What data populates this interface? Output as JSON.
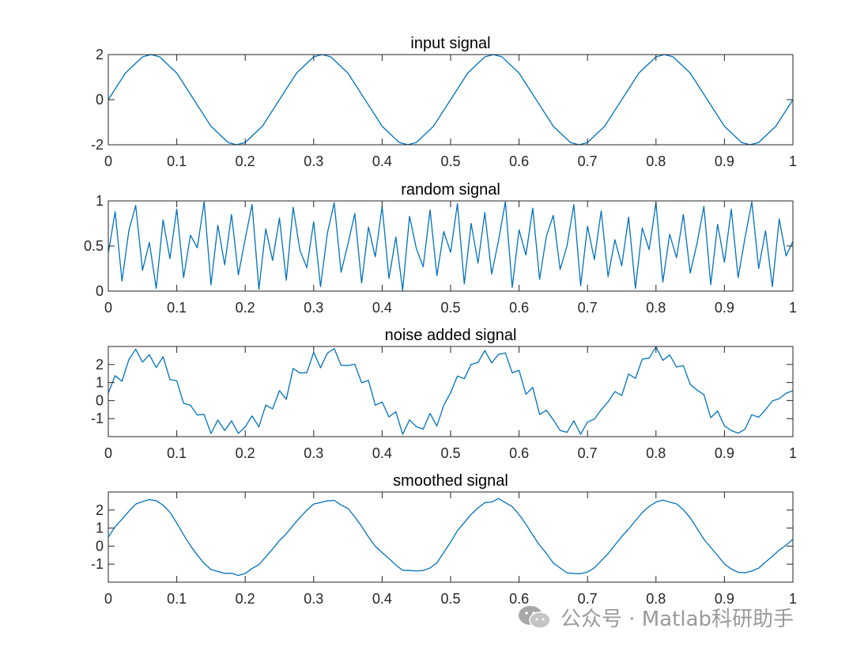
{
  "colors": {
    "line": "#0072BD",
    "axes": "#262626",
    "background": "#ffffff",
    "watermark": "#9a9a9a"
  },
  "watermark": {
    "icon": "wechat-icon",
    "text": "公众号 · Matlab科研助手"
  },
  "chart_data": [
    {
      "type": "line",
      "title": "input signal",
      "xlabel": "",
      "ylabel": "",
      "xlim": [
        0,
        1
      ],
      "ylim": [
        -2,
        2
      ],
      "xticks": [
        0,
        0.1,
        0.2,
        0.3,
        0.4,
        0.5,
        0.6,
        0.7,
        0.8,
        0.9,
        1
      ],
      "xtick_labels": [
        "0",
        "0.1",
        "0.2",
        "0.3",
        "0.4",
        "0.5",
        "0.6",
        "0.7",
        "0.8",
        "0.9",
        "1"
      ],
      "yticks": [
        -2,
        0,
        2
      ],
      "ytick_labels": [
        "-2",
        "0",
        "2"
      ],
      "grid": false,
      "series": [
        {
          "x": [
            0,
            0.025,
            0.05,
            0.0625,
            0.075,
            0.1,
            0.125,
            0.15,
            0.175,
            0.1875,
            0.2,
            0.225,
            0.25,
            0.275,
            0.3,
            0.3125,
            0.325,
            0.35,
            0.375,
            0.4,
            0.425,
            0.4375,
            0.45,
            0.475,
            0.5,
            0.525,
            0.55,
            0.5625,
            0.575,
            0.6,
            0.625,
            0.65,
            0.675,
            0.6875,
            0.7,
            0.725,
            0.75,
            0.775,
            0.8,
            0.8125,
            0.825,
            0.85,
            0.875,
            0.9,
            0.925,
            0.9375,
            0.95,
            0.975,
            1
          ],
          "y": [
            0,
            1.18,
            1.9,
            2,
            1.9,
            1.18,
            0,
            -1.18,
            -1.9,
            -2,
            -1.9,
            -1.18,
            0,
            1.18,
            1.9,
            2,
            1.9,
            1.18,
            0,
            -1.18,
            -1.9,
            -2,
            -1.9,
            -1.18,
            0,
            1.18,
            1.9,
            2,
            1.9,
            1.18,
            0,
            -1.18,
            -1.9,
            -2,
            -1.9,
            -1.18,
            0,
            1.18,
            1.9,
            2,
            1.9,
            1.18,
            0,
            -1.18,
            -1.9,
            -2,
            -1.9,
            -1.18,
            0
          ]
        }
      ]
    },
    {
      "type": "line",
      "title": "random signal",
      "xlabel": "",
      "ylabel": "",
      "xlim": [
        0,
        1
      ],
      "ylim": [
        0,
        1
      ],
      "xticks": [
        0,
        0.1,
        0.2,
        0.3,
        0.4,
        0.5,
        0.6,
        0.7,
        0.8,
        0.9,
        1
      ],
      "xtick_labels": [
        "0",
        "0.1",
        "0.2",
        "0.3",
        "0.4",
        "0.5",
        "0.6",
        "0.7",
        "0.8",
        "0.9",
        "1"
      ],
      "yticks": [
        0,
        0.5,
        1
      ],
      "ytick_labels": [
        "0",
        "0.5",
        "1"
      ],
      "grid": false,
      "series": [
        {
          "x": [
            0,
            0.01,
            0.02,
            0.03,
            0.04,
            0.05,
            0.06,
            0.07,
            0.08,
            0.09,
            0.1,
            0.11,
            0.12,
            0.13,
            0.14,
            0.15,
            0.16,
            0.17,
            0.18,
            0.19,
            0.2,
            0.21,
            0.22,
            0.23,
            0.24,
            0.25,
            0.26,
            0.27,
            0.28,
            0.29,
            0.3,
            0.31,
            0.32,
            0.33,
            0.34,
            0.35,
            0.36,
            0.37,
            0.38,
            0.39,
            0.4,
            0.41,
            0.42,
            0.43,
            0.44,
            0.45,
            0.46,
            0.47,
            0.48,
            0.49,
            0.5,
            0.51,
            0.52,
            0.53,
            0.54,
            0.55,
            0.56,
            0.57,
            0.58,
            0.59,
            0.6,
            0.61,
            0.62,
            0.63,
            0.64,
            0.65,
            0.66,
            0.67,
            0.68,
            0.69,
            0.7,
            0.71,
            0.72,
            0.73,
            0.74,
            0.75,
            0.76,
            0.77,
            0.78,
            0.79,
            0.8,
            0.81,
            0.82,
            0.83,
            0.84,
            0.85,
            0.86,
            0.87,
            0.88,
            0.89,
            0.9,
            0.91,
            0.92,
            0.93,
            0.94,
            0.95,
            0.96,
            0.97,
            0.98,
            0.99,
            1
          ],
          "y": [
            0.42,
            0.88,
            0.11,
            0.67,
            0.95,
            0.23,
            0.54,
            0.03,
            0.79,
            0.36,
            0.91,
            0.15,
            0.62,
            0.48,
            0.99,
            0.07,
            0.73,
            0.29,
            0.85,
            0.18,
            0.58,
            0.96,
            0.02,
            0.69,
            0.34,
            0.81,
            0.12,
            0.93,
            0.45,
            0.26,
            0.77,
            0.05,
            0.64,
            0.98,
            0.21,
            0.52,
            0.86,
            0.09,
            0.71,
            0.38,
            0.94,
            0.14,
            0.6,
            0.01,
            0.83,
            0.47,
            0.27,
            0.9,
            0.17,
            0.66,
            0.43,
            0.97,
            0.08,
            0.75,
            0.31,
            0.87,
            0.19,
            0.56,
            0.99,
            0.04,
            0.68,
            0.4,
            0.92,
            0.13,
            0.61,
            0.84,
            0.24,
            0.5,
            0.96,
            0.06,
            0.72,
            0.35,
            0.89,
            0.16,
            0.57,
            0.28,
            0.82,
            0.03,
            0.7,
            0.46,
            0.98,
            0.1,
            0.63,
            0.37,
            0.85,
            0.2,
            0.53,
            0.94,
            0.07,
            0.74,
            0.32,
            0.91,
            0.15,
            0.59,
            0.99,
            0.25,
            0.67,
            0.05,
            0.8,
            0.39,
            0.55
          ]
        }
      ]
    },
    {
      "type": "line",
      "title": "noise added signal",
      "xlabel": "",
      "ylabel": "",
      "xlim": [
        0,
        1
      ],
      "ylim": [
        -2,
        3
      ],
      "xticks": [
        0,
        0.1,
        0.2,
        0.3,
        0.4,
        0.5,
        0.6,
        0.7,
        0.8,
        0.9,
        1
      ],
      "xtick_labels": [
        "0",
        "0.1",
        "0.2",
        "0.3",
        "0.4",
        "0.5",
        "0.6",
        "0.7",
        "0.8",
        "0.9",
        "1"
      ],
      "yticks": [
        -1,
        0,
        1,
        2
      ],
      "ytick_labels": [
        "-1",
        "0",
        "1",
        "2"
      ],
      "grid": false,
      "series": [
        {
          "x": [
            0,
            0.01,
            0.02,
            0.03,
            0.04,
            0.05,
            0.06,
            0.07,
            0.08,
            0.09,
            0.1,
            0.11,
            0.12,
            0.13,
            0.14,
            0.15,
            0.16,
            0.17,
            0.18,
            0.19,
            0.2,
            0.21,
            0.22,
            0.23,
            0.24,
            0.25,
            0.26,
            0.27,
            0.28,
            0.29,
            0.3,
            0.31,
            0.32,
            0.33,
            0.34,
            0.35,
            0.36,
            0.37,
            0.38,
            0.39,
            0.4,
            0.41,
            0.42,
            0.43,
            0.44,
            0.45,
            0.46,
            0.47,
            0.48,
            0.49,
            0.5,
            0.51,
            0.52,
            0.53,
            0.54,
            0.55,
            0.56,
            0.57,
            0.58,
            0.59,
            0.6,
            0.61,
            0.62,
            0.63,
            0.64,
            0.65,
            0.66,
            0.67,
            0.68,
            0.69,
            0.7,
            0.71,
            0.72,
            0.73,
            0.74,
            0.75,
            0.76,
            0.77,
            0.78,
            0.79,
            0.8,
            0.81,
            0.82,
            0.83,
            0.84,
            0.85,
            0.86,
            0.87,
            0.88,
            0.89,
            0.9,
            0.91,
            0.92,
            0.93,
            0.94,
            0.95,
            0.96,
            0.97,
            0.98,
            0.99,
            1
          ],
          "y": [
            0.42,
            1.38,
            1.07,
            2.27,
            2.85,
            2.13,
            2.54,
            1.83,
            2.43,
            1.17,
            1.09,
            -0.15,
            -0.26,
            -0.8,
            -0.77,
            -1.83,
            -1.08,
            -1.66,
            -1.12,
            -1.82,
            -1.46,
            -0.85,
            -1.46,
            -0.25,
            -0.46,
            0.55,
            0.07,
            1.78,
            1.53,
            1.55,
            2.67,
            1.82,
            2.63,
            2.88,
            1.96,
            1.94,
            2.02,
            0.99,
            1.12,
            -0.26,
            -0.08,
            -0.91,
            -0.62,
            -1.87,
            -1.07,
            -1.45,
            -1.58,
            -0.71,
            -1.41,
            -0.26,
            0.43,
            1.36,
            1.21,
            2.01,
            2.11,
            2.77,
            2.09,
            2.56,
            2.64,
            1.54,
            1.68,
            0.35,
            0.73,
            -0.77,
            -0.54,
            -1.06,
            -1.66,
            -1.76,
            -1.12,
            -1.87,
            -1.18,
            -1.03,
            -0.51,
            -0.07,
            0.5,
            0.28,
            1.47,
            1.23,
            2.3,
            2.35,
            2.98,
            2.23,
            2.53,
            1.86,
            1.94,
            0.9,
            0.58,
            0.33,
            -0.95,
            -0.58,
            -1.4,
            -1.66,
            -1.81,
            -1.59,
            -0.78,
            -0.93,
            -0.51,
            -0.02,
            0.11,
            0.4,
            0.55
          ]
        }
      ]
    },
    {
      "type": "line",
      "title": "smoothed signal",
      "xlabel": "",
      "ylabel": "",
      "xlim": [
        0,
        1
      ],
      "ylim": [
        -2,
        3
      ],
      "xticks": [
        0,
        0.1,
        0.2,
        0.3,
        0.4,
        0.5,
        0.6,
        0.7,
        0.8,
        0.9,
        1
      ],
      "xtick_labels": [
        "0",
        "0.1",
        "0.2",
        "0.3",
        "0.4",
        "0.5",
        "0.6",
        "0.7",
        "0.8",
        "0.9",
        "1"
      ],
      "yticks": [
        -1,
        0,
        1,
        2
      ],
      "ytick_labels": [
        "-1",
        "0",
        "1",
        "2"
      ],
      "grid": false,
      "series": [
        {
          "x": [
            0,
            0.01,
            0.02,
            0.03,
            0.04,
            0.05,
            0.06,
            0.07,
            0.08,
            0.09,
            0.1,
            0.11,
            0.12,
            0.13,
            0.14,
            0.15,
            0.16,
            0.17,
            0.18,
            0.19,
            0.2,
            0.21,
            0.22,
            0.23,
            0.24,
            0.25,
            0.26,
            0.27,
            0.28,
            0.29,
            0.3,
            0.31,
            0.32,
            0.33,
            0.34,
            0.35,
            0.36,
            0.37,
            0.38,
            0.39,
            0.4,
            0.41,
            0.42,
            0.43,
            0.44,
            0.45,
            0.46,
            0.47,
            0.48,
            0.49,
            0.5,
            0.51,
            0.52,
            0.53,
            0.54,
            0.55,
            0.56,
            0.57,
            0.58,
            0.59,
            0.6,
            0.61,
            0.62,
            0.63,
            0.64,
            0.65,
            0.66,
            0.67,
            0.68,
            0.69,
            0.7,
            0.71,
            0.72,
            0.73,
            0.74,
            0.75,
            0.76,
            0.77,
            0.78,
            0.79,
            0.8,
            0.81,
            0.82,
            0.83,
            0.84,
            0.85,
            0.86,
            0.87,
            0.88,
            0.89,
            0.9,
            0.91,
            0.92,
            0.93,
            0.94,
            0.95,
            0.96,
            0.97,
            0.98,
            0.99,
            1
          ],
          "y": [
            0.5,
            1.08,
            1.49,
            1.93,
            2.33,
            2.47,
            2.58,
            2.52,
            2.27,
            1.88,
            1.28,
            0.63,
            0.02,
            -0.49,
            -0.96,
            -1.3,
            -1.41,
            -1.51,
            -1.5,
            -1.63,
            -1.52,
            -1.24,
            -1.03,
            -0.6,
            -0.16,
            0.31,
            0.68,
            1.15,
            1.59,
            1.99,
            2.33,
            2.42,
            2.51,
            2.54,
            2.28,
            2.09,
            1.63,
            1.1,
            0.51,
            -0.01,
            -0.36,
            -0.69,
            -1.05,
            -1.34,
            -1.35,
            -1.38,
            -1.35,
            -1.21,
            -0.93,
            -0.35,
            0.22,
            0.86,
            1.31,
            1.76,
            2.11,
            2.41,
            2.44,
            2.64,
            2.41,
            2.19,
            1.75,
            1.22,
            0.61,
            0.05,
            -0.4,
            -0.94,
            -1.21,
            -1.48,
            -1.52,
            -1.53,
            -1.44,
            -1.2,
            -0.82,
            -0.42,
            0.06,
            0.53,
            0.95,
            1.41,
            1.86,
            2.2,
            2.44,
            2.55,
            2.44,
            2.34,
            2.02,
            1.57,
            0.98,
            0.38,
            -0.07,
            -0.52,
            -0.99,
            -1.27,
            -1.45,
            -1.48,
            -1.38,
            -1.22,
            -0.88,
            -0.57,
            -0.22,
            0.05,
            0.38
          ]
        }
      ]
    }
  ]
}
